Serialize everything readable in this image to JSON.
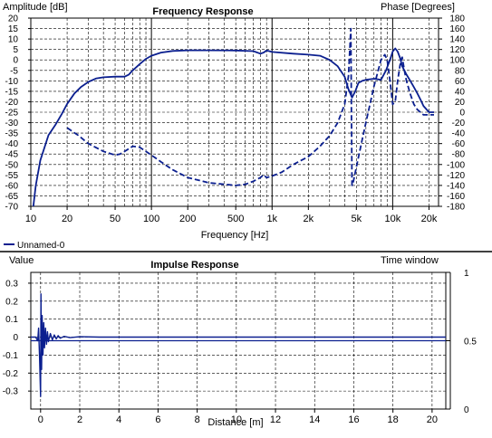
{
  "colors": {
    "background": "#ffffff",
    "trace": "#0b1f8f",
    "grid": "#000000",
    "divider": "#000000"
  },
  "chart_data": [
    {
      "type": "line",
      "title": "Frequency Response",
      "xlabel": "Frequency [Hz]",
      "ylabel_left": "Amplitude [dB]",
      "ylabel_right": "Phase [Degrees]",
      "x_scale": "log",
      "xlim": [
        10,
        24000
      ],
      "ylim_left": [
        -70,
        20
      ],
      "ylim_right": [
        -180,
        180
      ],
      "grid": true,
      "x_ticks": [
        10,
        20,
        50,
        100,
        200,
        500,
        1000,
        2000,
        5000,
        10000,
        20000
      ],
      "x_tick_labels": [
        "10",
        "20",
        "50",
        "100",
        "200",
        "500",
        "1k",
        "2k",
        "5k",
        "10k",
        "20k"
      ],
      "y_ticks_left": [
        20,
        15,
        10,
        5,
        0,
        -5,
        -10,
        -15,
        -20,
        -25,
        -30,
        -35,
        -40,
        -45,
        -50,
        -55,
        -60,
        -65,
        -70
      ],
      "y_tick_labels_left": [
        "20",
        "15",
        "10",
        "5",
        "0",
        "-5",
        "-10",
        "-15",
        "-20",
        "-25",
        "-30",
        "-35",
        "-40",
        "-45",
        "-50",
        "-55",
        "-60",
        "-65",
        "-70"
      ],
      "y_ticks_right": [
        180,
        160,
        140,
        120,
        100,
        80,
        60,
        40,
        20,
        0,
        -20,
        -40,
        -60,
        -80,
        -100,
        -120,
        -140,
        -160,
        -180
      ],
      "y_tick_labels_right": [
        "180",
        "160",
        "140",
        "120",
        "100",
        "80",
        "60",
        "40",
        "20",
        "0",
        "-20",
        "-40",
        "-60",
        "-80",
        "-100",
        "-120",
        "-140",
        "-160",
        "-180"
      ],
      "legend": {
        "placement": "bottom-left",
        "entries": [
          "Unnamed-0"
        ]
      },
      "series": [
        {
          "name": "Unnamed-0",
          "style": "solid",
          "axis": "left",
          "x": [
            10.5,
            11,
            12,
            14,
            16,
            18,
            20,
            23,
            26,
            30,
            35,
            40,
            50,
            60,
            65,
            70,
            80,
            90,
            100,
            120,
            150,
            200,
            300,
            500,
            700,
            800,
            850,
            900,
            1000,
            1500,
            2000,
            2500,
            3000,
            3500,
            4000,
            4300,
            4600,
            4900,
            5200,
            5600,
            6000,
            7000,
            8000,
            8800,
            9500,
            10000,
            10500,
            11000,
            11500,
            12000,
            13000,
            14000,
            15000,
            16000,
            17000,
            18000,
            20000,
            22000
          ],
          "y": [
            -70,
            -60,
            -48,
            -36,
            -31,
            -26,
            -21,
            -16,
            -13,
            -10.5,
            -8.8,
            -8.3,
            -8,
            -8,
            -7,
            -5,
            -2,
            0.5,
            2,
            3.5,
            4.3,
            4.6,
            4.6,
            4.5,
            4.2,
            3,
            3.5,
            4.5,
            3.8,
            3,
            2.5,
            2,
            0,
            -3,
            -8,
            -14,
            -18,
            -15,
            -11,
            -10,
            -9.5,
            -9,
            -9.5,
            -5,
            0,
            4,
            5.5,
            4,
            1,
            -3,
            -7,
            -10,
            -13,
            -16,
            -19,
            -22,
            -25,
            -25
          ]
        },
        {
          "name": "",
          "style": "dashed",
          "axis": "right",
          "x": [
            20,
            25,
            30,
            40,
            50,
            55,
            60,
            70,
            80,
            90,
            100,
            120,
            150,
            200,
            300,
            500,
            600,
            700,
            800,
            850,
            900,
            1000,
            1200,
            1500,
            2000,
            2500,
            3000,
            3500,
            4000,
            4300,
            4500,
            4550,
            4600,
            4700,
            5000,
            5500,
            6000,
            7000,
            8000,
            8600,
            9000,
            9500,
            10000,
            10500,
            11000,
            11500,
            12000,
            12500,
            13000,
            14000,
            15000,
            16000,
            18000,
            20000,
            22000
          ],
          "y": [
            -30,
            -45,
            -60,
            -75,
            -82,
            -80,
            -75,
            -65,
            -67,
            -75,
            -82,
            -95,
            -110,
            -125,
            -135,
            -140,
            -138,
            -132,
            -125,
            -120,
            -125,
            -122,
            -115,
            -100,
            -85,
            -65,
            -45,
            -20,
            15,
            70,
            160,
            -10,
            -140,
            -135,
            -105,
            -60,
            -20,
            50,
            100,
            110,
            100,
            60,
            15,
            20,
            60,
            90,
            105,
            80,
            60,
            35,
            15,
            5,
            -5,
            -5,
            -5
          ]
        }
      ]
    },
    {
      "type": "line",
      "title": "Impulse Response",
      "xlabel": "Distance [m]",
      "ylabel_left": "Value",
      "ylabel_right": "Time window",
      "xlim": [
        -0.5,
        20.7
      ],
      "ylim_left": [
        -0.4,
        0.36
      ],
      "ylim_right": [
        0,
        1
      ],
      "grid": true,
      "x_ticks": [
        0,
        2,
        4,
        6,
        8,
        10,
        12,
        14,
        16,
        18,
        20
      ],
      "x_tick_labels": [
        "0",
        "2",
        "4",
        "6",
        "8",
        "10",
        "12",
        "14",
        "16",
        "18",
        "20"
      ],
      "y_ticks_left": [
        0.3,
        0.2,
        0.1,
        0,
        -0.1,
        -0.2,
        -0.3
      ],
      "y_tick_labels_left": [
        "0.3",
        "0.2",
        "0.1",
        "0",
        "-0.1",
        "-0.2",
        "-0.3"
      ],
      "y_ticks_right": [
        1,
        0.5,
        0
      ],
      "y_tick_labels_right": [
        "1",
        "0.5",
        "0"
      ],
      "series": [
        {
          "name": "",
          "style": "solid",
          "axis": "left",
          "x": [
            -0.5,
            -0.25,
            -0.15,
            -0.1,
            -0.05,
            0,
            0.02,
            0.05,
            0.08,
            0.12,
            0.16,
            0.2,
            0.25,
            0.3,
            0.35,
            0.4,
            0.5,
            0.6,
            0.7,
            0.8,
            0.9,
            1.0,
            1.2,
            1.5,
            2.0,
            3.0,
            5.0,
            10.0,
            15.0,
            20.7
          ],
          "y": [
            0,
            0,
            -0.02,
            0.05,
            -0.12,
            -0.33,
            0.24,
            -0.18,
            0.12,
            -0.1,
            0.08,
            -0.06,
            0.05,
            -0.04,
            0.03,
            -0.025,
            0.02,
            -0.015,
            0.012,
            -0.01,
            0.008,
            -0.006,
            0.004,
            -0.003,
            0.002,
            0,
            0,
            0,
            0,
            0
          ]
        },
        {
          "name": "",
          "style": "solid",
          "axis": "right",
          "x": [
            -0.5,
            20.7
          ],
          "y": [
            0.5,
            0.5
          ]
        }
      ]
    }
  ]
}
